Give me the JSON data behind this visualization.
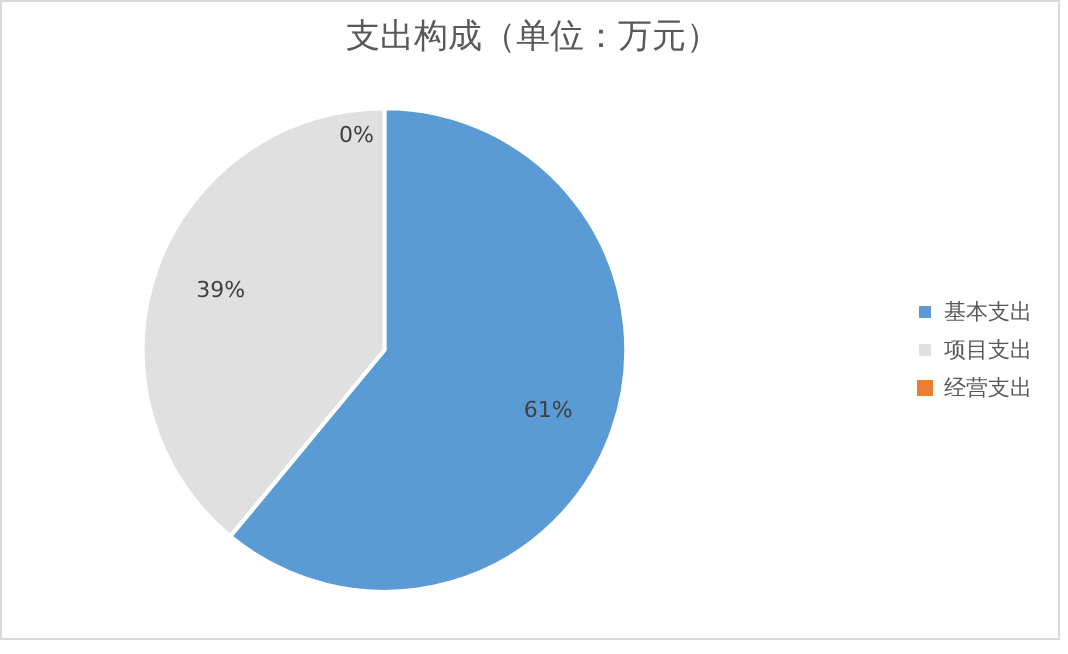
{
  "chart_data": {
    "type": "pie",
    "title": "支出构成（单位：万元）",
    "categories": [
      "基本支出",
      "项目支出",
      "经营支出"
    ],
    "values": [
      61,
      39,
      0
    ],
    "colors": [
      "#5b9bd5",
      "#e0e0e0",
      "#ed7d31"
    ],
    "value_labels": [
      "61%",
      "39%",
      "0%"
    ],
    "legend": "right"
  }
}
